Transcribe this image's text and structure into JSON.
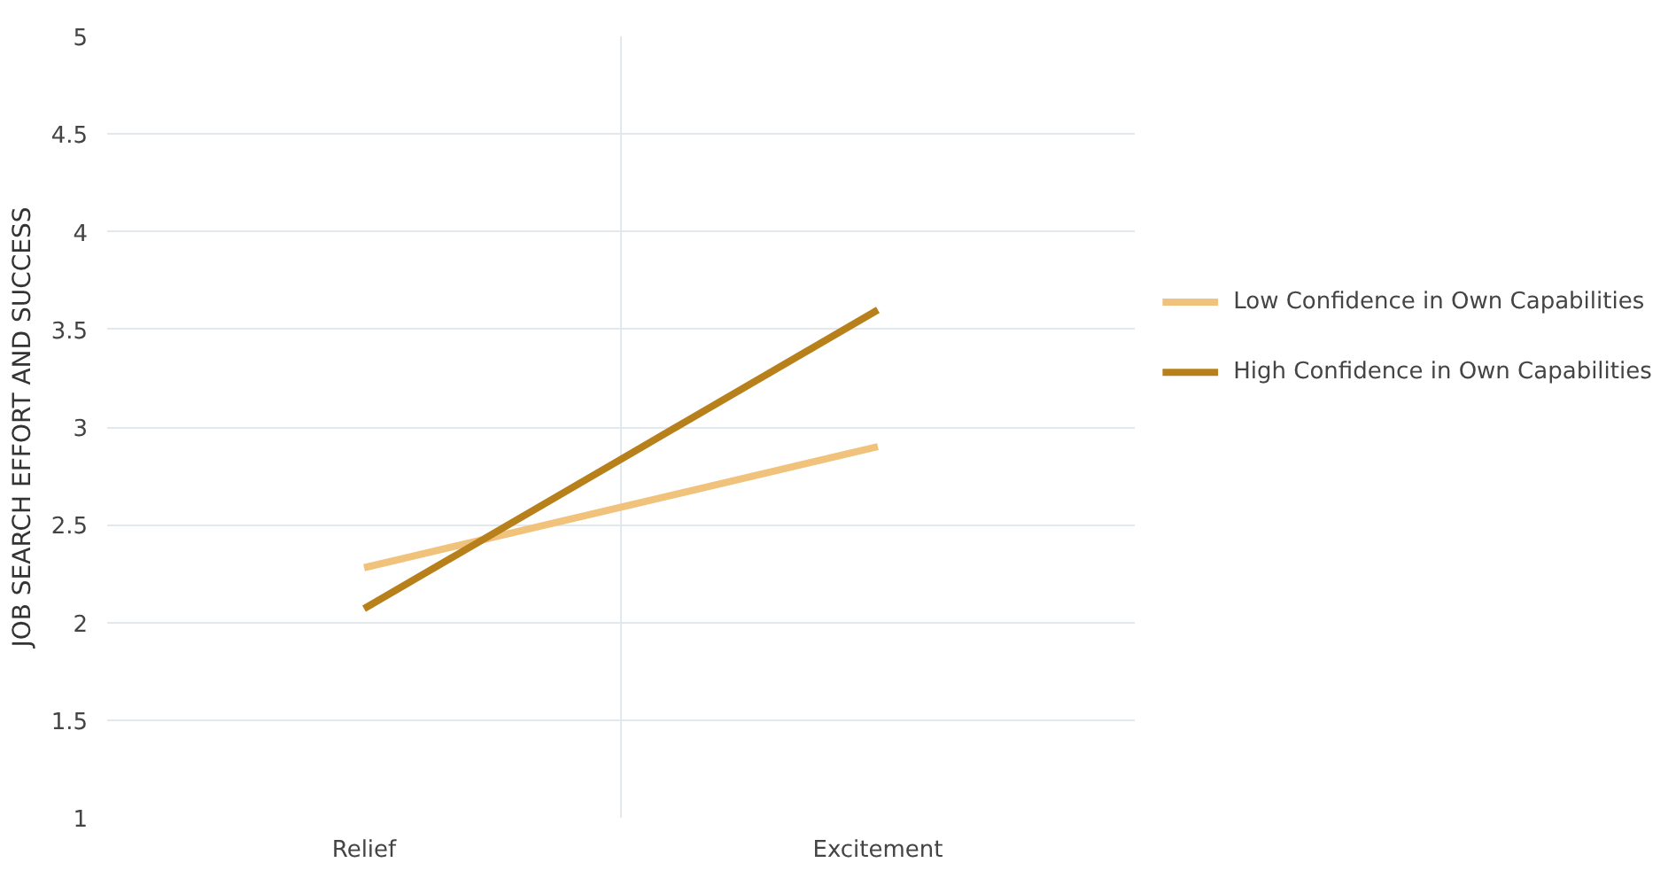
{
  "chart_data": {
    "type": "line",
    "ylabel": "JOB SEARCH EFFORT AND SUCCESS",
    "categories": [
      "Relief",
      "Excitement"
    ],
    "series": [
      {
        "name": "Low Confidence in Own Capabilities",
        "color": "#f0c27b",
        "values": [
          2.28,
          2.9
        ]
      },
      {
        "name": "High Confidence in Own Capabilities",
        "color": "#b8801a",
        "values": [
          2.07,
          3.6
        ]
      }
    ],
    "ylim": [
      1,
      5
    ],
    "yticks": [
      1,
      1.5,
      2,
      2.5,
      3,
      3.5,
      4,
      4.5,
      5
    ],
    "grid": true,
    "legend": "right",
    "marker": "none",
    "line_style": "solid"
  }
}
